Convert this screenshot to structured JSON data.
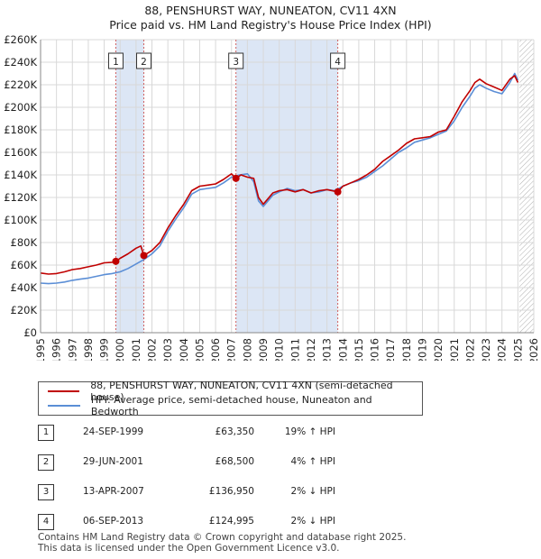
{
  "title_line1": "88, PENSHURST WAY, NUNEATON, CV11 4XN",
  "title_line2": "Price paid vs. HM Land Registry's House Price Index (HPI)",
  "colors": {
    "property_line": "#c00000",
    "hpi_line": "#5b8ed6",
    "shade": "#dce6f5",
    "marker_line": "#d06060",
    "grid": "#d8d8d8",
    "marker_dot": "#c00000"
  },
  "chart_data": {
    "type": "line",
    "xlim": [
      1995,
      2026
    ],
    "ylim": [
      0,
      260000
    ],
    "y_ticks": [
      {
        "value": 0,
        "label": "£0"
      },
      {
        "value": 20000,
        "label": "£20K"
      },
      {
        "value": 40000,
        "label": "£40K"
      },
      {
        "value": 60000,
        "label": "£60K"
      },
      {
        "value": 80000,
        "label": "£80K"
      },
      {
        "value": 100000,
        "label": "£100K"
      },
      {
        "value": 120000,
        "label": "£120K"
      },
      {
        "value": 140000,
        "label": "£140K"
      },
      {
        "value": 160000,
        "label": "£160K"
      },
      {
        "value": 180000,
        "label": "£180K"
      },
      {
        "value": 200000,
        "label": "£200K"
      },
      {
        "value": 220000,
        "label": "£220K"
      },
      {
        "value": 240000,
        "label": "£240K"
      },
      {
        "value": 260000,
        "label": "£260K"
      }
    ],
    "x_ticks": [
      1995,
      1996,
      1997,
      1998,
      1999,
      2000,
      2001,
      2002,
      2003,
      2004,
      2005,
      2006,
      2007,
      2008,
      2009,
      2010,
      2011,
      2012,
      2013,
      2014,
      2015,
      2016,
      2017,
      2018,
      2019,
      2020,
      2021,
      2022,
      2023,
      2024,
      2025,
      2026
    ],
    "shaded_ranges": [
      [
        1999.73,
        2001.49
      ],
      [
        2007.28,
        2013.68
      ]
    ],
    "future_hatch_start": 2025.1,
    "sales": [
      {
        "label": "1",
        "year": 1999.73,
        "price": 63350
      },
      {
        "label": "2",
        "year": 2001.49,
        "price": 68500
      },
      {
        "label": "3",
        "year": 2007.28,
        "price": 136950
      },
      {
        "label": "4",
        "year": 2013.68,
        "price": 124995
      }
    ],
    "series": [
      {
        "name": "88, PENSHURST WAY, NUNEATON, CV11 4XN (semi-detached house)",
        "x": [
          1995.0,
          1995.5,
          1996.0,
          1996.5,
          1997.0,
          1997.5,
          1998.0,
          1998.5,
          1999.0,
          1999.5,
          1999.73,
          2000.0,
          2000.5,
          2001.0,
          2001.3,
          2001.49,
          2002.0,
          2002.5,
          2003.0,
          2003.5,
          2004.0,
          2004.5,
          2005.0,
          2005.5,
          2006.0,
          2006.5,
          2007.0,
          2007.28,
          2007.6,
          2008.0,
          2008.4,
          2008.7,
          2009.0,
          2009.3,
          2009.6,
          2010.0,
          2010.5,
          2011.0,
          2011.5,
          2012.0,
          2012.5,
          2013.0,
          2013.68,
          2014.0,
          2014.5,
          2015.0,
          2015.5,
          2016.0,
          2016.5,
          2017.0,
          2017.5,
          2018.0,
          2018.5,
          2019.0,
          2019.5,
          2020.0,
          2020.5,
          2021.0,
          2021.5,
          2022.0,
          2022.3,
          2022.6,
          2023.0,
          2023.5,
          2024.0,
          2024.5,
          2024.8,
          2025.0
        ],
        "values": [
          53000,
          52000,
          52500,
          54000,
          56000,
          57000,
          58500,
          60000,
          62000,
          62500,
          63350,
          66000,
          70000,
          75000,
          77000,
          68500,
          73000,
          80000,
          93000,
          104000,
          114000,
          126000,
          130000,
          131000,
          132000,
          136000,
          141000,
          136950,
          140000,
          138000,
          137000,
          120000,
          114000,
          119000,
          124000,
          126000,
          127000,
          125000,
          127000,
          124000,
          126000,
          127000,
          124995,
          130000,
          133000,
          136000,
          140000,
          145000,
          152000,
          157000,
          162000,
          168000,
          172000,
          173000,
          174000,
          178000,
          180000,
          192000,
          205000,
          215000,
          222000,
          225000,
          221000,
          218000,
          215000,
          225000,
          228000,
          222000
        ]
      },
      {
        "name": "HPI: Average price, semi-detached house, Nuneaton and Bedworth",
        "x": [
          1995.0,
          1995.5,
          1996.0,
          1996.5,
          1997.0,
          1997.5,
          1998.0,
          1998.5,
          1999.0,
          1999.5,
          2000.0,
          2000.5,
          2001.0,
          2001.5,
          2002.0,
          2002.5,
          2003.0,
          2003.5,
          2004.0,
          2004.5,
          2005.0,
          2005.5,
          2006.0,
          2006.5,
          2007.0,
          2007.5,
          2008.0,
          2008.4,
          2008.7,
          2009.0,
          2009.3,
          2009.6,
          2010.0,
          2010.5,
          2011.0,
          2011.5,
          2012.0,
          2012.5,
          2013.0,
          2013.5,
          2014.0,
          2014.5,
          2015.0,
          2015.5,
          2016.0,
          2016.5,
          2017.0,
          2017.5,
          2018.0,
          2018.5,
          2019.0,
          2019.5,
          2020.0,
          2020.5,
          2021.0,
          2021.5,
          2022.0,
          2022.3,
          2022.6,
          2023.0,
          2023.5,
          2024.0,
          2024.5,
          2024.8,
          2025.0
        ],
        "values": [
          44000,
          43500,
          44000,
          45000,
          46500,
          47500,
          48500,
          50000,
          51500,
          52500,
          54000,
          57000,
          61000,
          65000,
          70000,
          77000,
          90000,
          101000,
          111000,
          123000,
          127000,
          128000,
          129000,
          133000,
          138000,
          140000,
          141000,
          134000,
          117000,
          112000,
          117000,
          122000,
          125000,
          128000,
          126000,
          127000,
          124000,
          125000,
          127000,
          126000,
          130000,
          133000,
          135000,
          138000,
          143000,
          148000,
          154000,
          160000,
          164000,
          169000,
          171000,
          173000,
          176000,
          179000,
          188000,
          200000,
          210000,
          217000,
          220000,
          217000,
          214000,
          212000,
          222000,
          230000,
          224000
        ]
      }
    ]
  },
  "legend": {
    "property": "88, PENSHURST WAY, NUNEATON, CV11 4XN (semi-detached house)",
    "hpi": "HPI: Average price, semi-detached house, Nuneaton and Bedworth"
  },
  "sales_table": [
    {
      "num": "1",
      "date": "24-SEP-1999",
      "price": "£63,350",
      "hpi": "19% ↑ HPI"
    },
    {
      "num": "2",
      "date": "29-JUN-2001",
      "price": "£68,500",
      "hpi": "4% ↑ HPI"
    },
    {
      "num": "3",
      "date": "13-APR-2007",
      "price": "£136,950",
      "hpi": "2% ↓ HPI"
    },
    {
      "num": "4",
      "date": "06-SEP-2013",
      "price": "£124,995",
      "hpi": "2% ↓ HPI"
    }
  ],
  "footer_line1": "Contains HM Land Registry data © Crown copyright and database right 2025.",
  "footer_line2": "This data is licensed under the Open Government Licence v3.0."
}
